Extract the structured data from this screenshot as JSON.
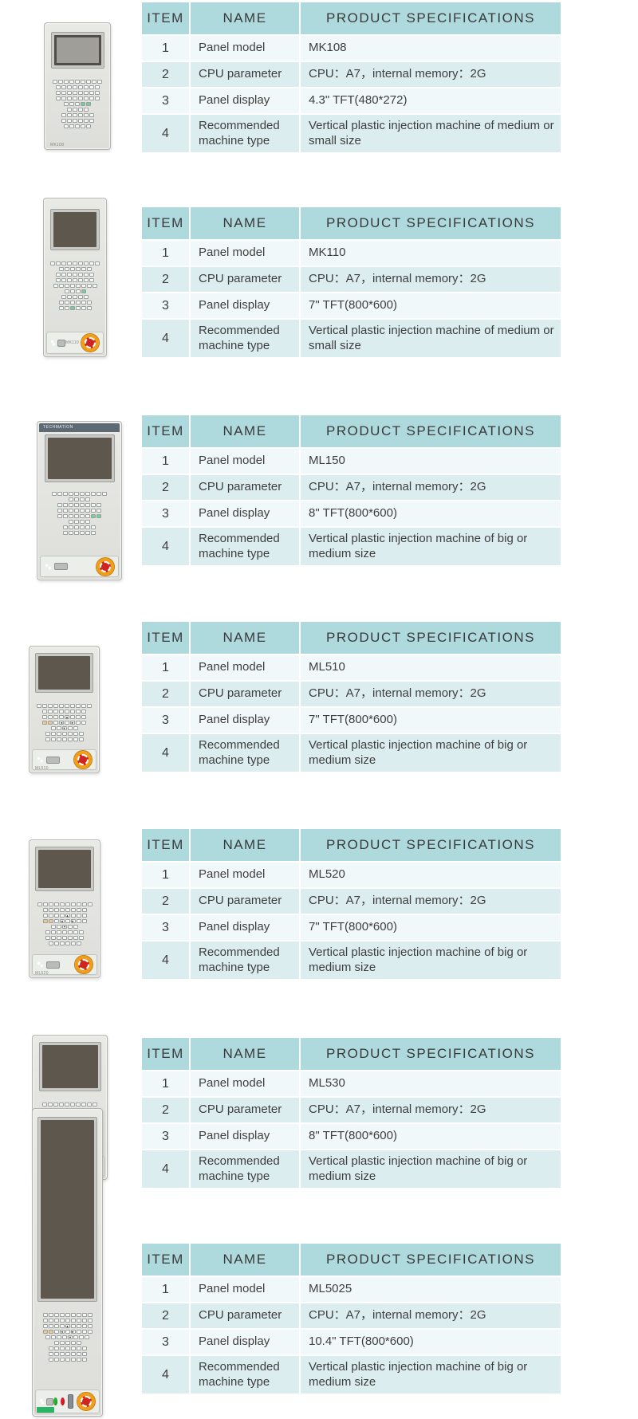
{
  "table": {
    "headers": {
      "item": "ITEM",
      "name": "NAME",
      "spec": "PRODUCT SPECIFICATIONS"
    }
  },
  "colors": {
    "header_bg": "#aed9dd",
    "row_light_bg": "#f1f8f9",
    "row_teal_bg": "#dcedef",
    "text": "#3e3e3e",
    "estop_red": "#cf2420",
    "estop_plate_orange": "#f6b41e",
    "device_panel_gray": "#e4e5e1"
  },
  "products": [
    {
      "model": "MK108",
      "rows": [
        {
          "item": "1",
          "name": "Panel model",
          "spec": "MK108"
        },
        {
          "item": "2",
          "name": "CPU parameter",
          "spec": "CPU：A7，internal memory：2G"
        },
        {
          "item": "3",
          "name": "Panel display",
          "spec": "4.3\" TFT(480*272)"
        },
        {
          "item": "4",
          "name": "Recommended machine type",
          "spec": "Vertical plastic injection machine of medium or small size"
        }
      ]
    },
    {
      "model": "MK110",
      "rows": [
        {
          "item": "1",
          "name": "Panel model",
          "spec": "MK110"
        },
        {
          "item": "2",
          "name": "CPU parameter",
          "spec": "CPU：A7，internal memory：2G"
        },
        {
          "item": "3",
          "name": "Panel display",
          "spec": "7\" TFT(800*600)"
        },
        {
          "item": "4",
          "name": "Recommended machine type",
          "spec": "Vertical plastic injection machine of medium or small size"
        }
      ]
    },
    {
      "model": "ML150",
      "device_brand": "TECHMATION",
      "rows": [
        {
          "item": "1",
          "name": "Panel model",
          "spec": "ML150"
        },
        {
          "item": "2",
          "name": "CPU parameter",
          "spec": "CPU：A7，internal memory：2G"
        },
        {
          "item": "3",
          "name": "Panel display",
          "spec": "8\" TFT(800*600)"
        },
        {
          "item": "4",
          "name": "Recommended machine type",
          "spec": "Vertical plastic injection machine of big or medium size"
        }
      ]
    },
    {
      "model": "ML510",
      "rows": [
        {
          "item": "1",
          "name": "Panel model",
          "spec": "ML510"
        },
        {
          "item": "2",
          "name": "CPU parameter",
          "spec": "CPU：A7，internal memory：2G"
        },
        {
          "item": "3",
          "name": "Panel display",
          "spec": "7\" TFT(800*600)"
        },
        {
          "item": "4",
          "name": "Recommended machine type",
          "spec": "Vertical plastic injection machine of big or medium size"
        }
      ]
    },
    {
      "model": "ML520",
      "rows": [
        {
          "item": "1",
          "name": "Panel model",
          "spec": "ML520"
        },
        {
          "item": "2",
          "name": "CPU parameter",
          "spec": "CPU：A7，internal memory：2G"
        },
        {
          "item": "3",
          "name": "Panel display",
          "spec": "7\" TFT(800*600)"
        },
        {
          "item": "4",
          "name": "Recommended machine type",
          "spec": "Vertical plastic injection machine of big or medium size"
        }
      ]
    },
    {
      "model": "ML530",
      "rows": [
        {
          "item": "1",
          "name": "Panel model",
          "spec": "ML530"
        },
        {
          "item": "2",
          "name": "CPU parameter",
          "spec": "CPU：A7，internal memory：2G"
        },
        {
          "item": "3",
          "name": "Panel display",
          "spec": "8\" TFT(800*600)"
        },
        {
          "item": "4",
          "name": "Recommended machine type",
          "spec": "Vertical plastic injection machine of big or medium size"
        }
      ]
    },
    {
      "model": "ML5025",
      "rows": [
        {
          "item": "1",
          "name": "Panel model",
          "spec": "ML5025"
        },
        {
          "item": "2",
          "name": "CPU parameter",
          "spec": "CPU：A7，internal memory：2G"
        },
        {
          "item": "3",
          "name": "Panel display",
          "spec": "10.4\" TFT(800*600)"
        },
        {
          "item": "4",
          "name": "Recommended machine type",
          "spec": "Vertical plastic injection machine of big or medium size"
        }
      ]
    }
  ]
}
